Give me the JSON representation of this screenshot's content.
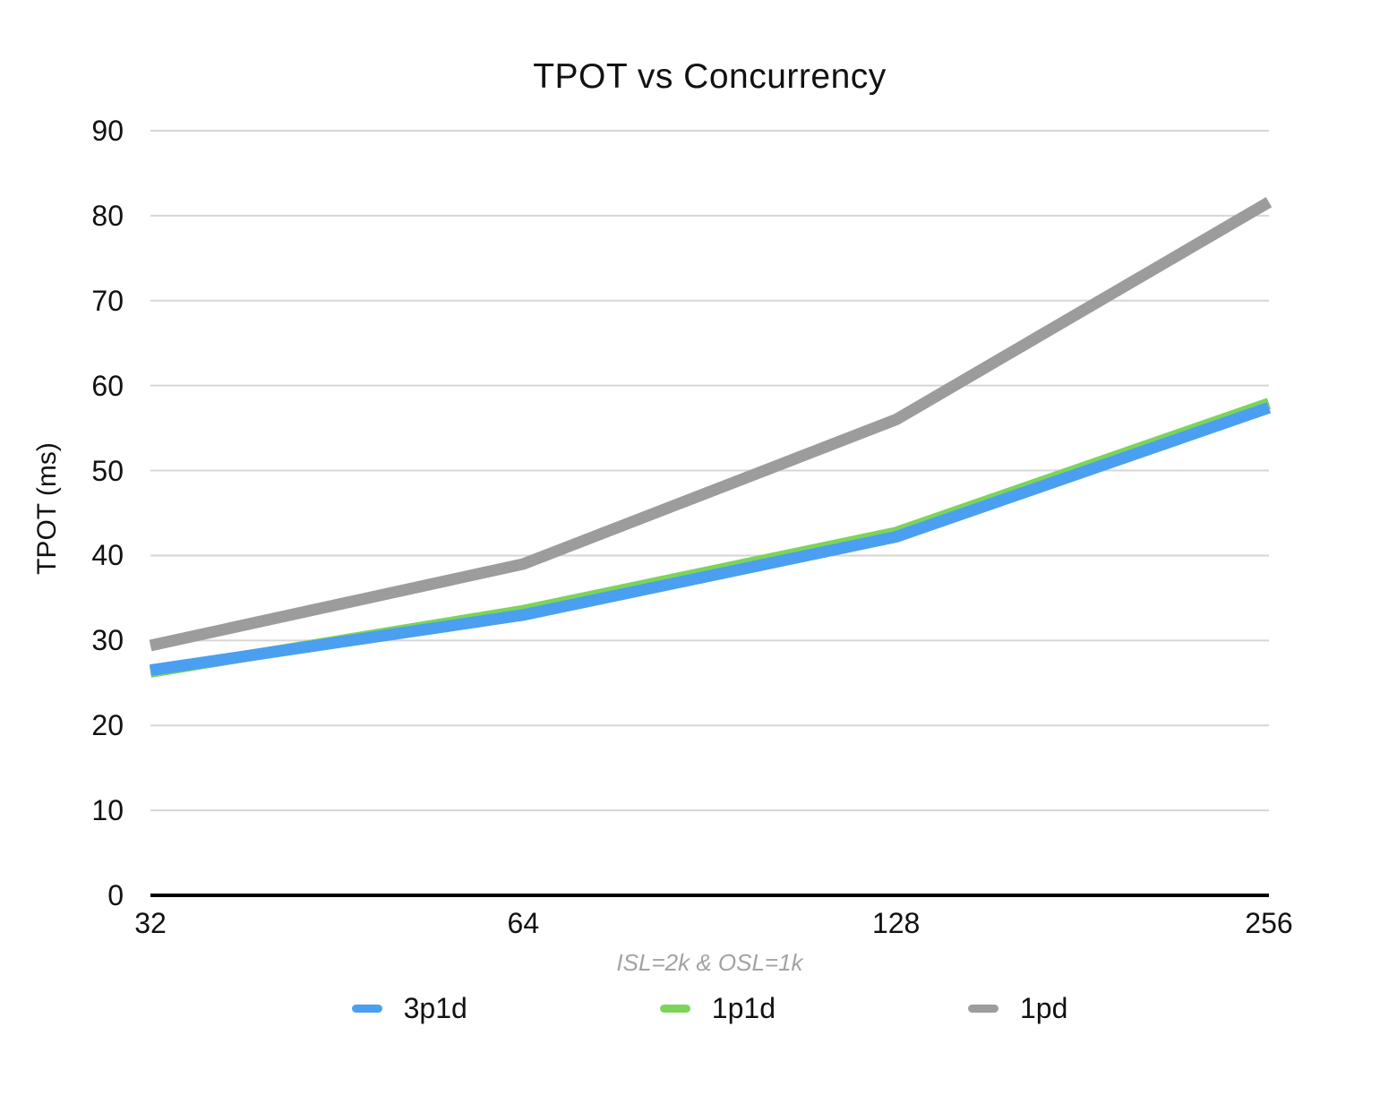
{
  "chart_data": {
    "type": "line",
    "title": "TPOT vs Concurrency",
    "xlabel": "ISL=2k & OSL=1k",
    "ylabel": "TPOT (ms)",
    "categories": [
      "32",
      "64",
      "128",
      "256"
    ],
    "y_ticks": [
      0,
      10,
      20,
      30,
      40,
      50,
      60,
      70,
      80,
      90
    ],
    "ylim": [
      0,
      90
    ],
    "grid": "horizontal",
    "legend_position": "bottom",
    "series": [
      {
        "name": "3p1d",
        "color": "#4A9FF0",
        "values": [
          26.5,
          33.0,
          42.2,
          57.4
        ]
      },
      {
        "name": "1p1d",
        "color": "#7CD45A",
        "values": [
          26.3,
          33.5,
          42.7,
          57.9
        ]
      },
      {
        "name": "1pd",
        "color": "#9C9C9C",
        "values": [
          29.4,
          39.0,
          56.0,
          81.6
        ]
      }
    ],
    "colors": {
      "gridline": "#d6d6d6",
      "axis": "#000000",
      "tick_text": "#111111",
      "subtitle_text": "#a3a3a3"
    }
  }
}
